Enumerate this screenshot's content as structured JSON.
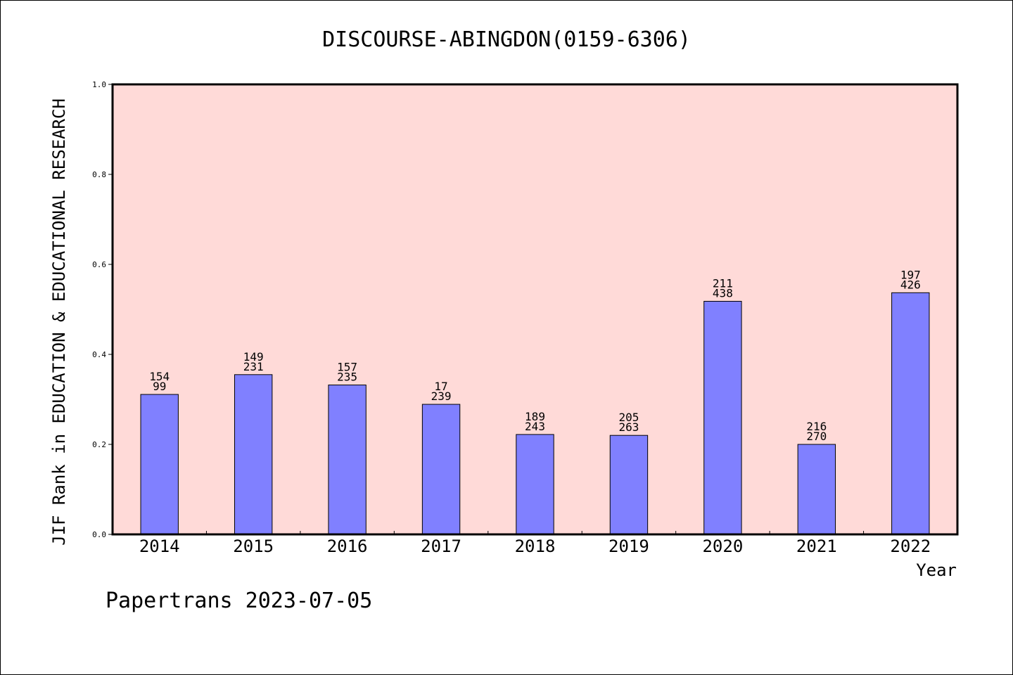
{
  "chart_data": {
    "type": "bar",
    "title": "DISCOURSE-ABINGDON(0159-6306)",
    "xlabel": "Year",
    "ylabel": "JIF Rank in EDUCATION & EDUCATIONAL RESEARCH",
    "ylim": [
      0,
      1.0
    ],
    "yticks": [
      "0.0",
      "0.2",
      "0.4",
      "0.6",
      "0.8",
      "1.0"
    ],
    "grid": false,
    "categories": [
      "2014",
      "2015",
      "2016",
      "2017",
      "2018",
      "2019",
      "2020",
      "2021",
      "2022"
    ],
    "values": [
      0.311,
      0.355,
      0.332,
      0.289,
      0.222,
      0.22,
      0.518,
      0.2,
      0.537
    ],
    "rank_labels": [
      "154",
      "149",
      "157",
      "17",
      "189",
      "205",
      "211",
      "216",
      "197"
    ],
    "total_labels": [
      "99",
      "231",
      "235",
      "239",
      "243",
      "263",
      "438",
      "270",
      "426"
    ],
    "colors": {
      "plot_bg": "#ffdad8",
      "bar": "#8080ff",
      "bar_edge": "#000000"
    }
  },
  "footer": {
    "text": "Papertrans 2023-07-05"
  }
}
